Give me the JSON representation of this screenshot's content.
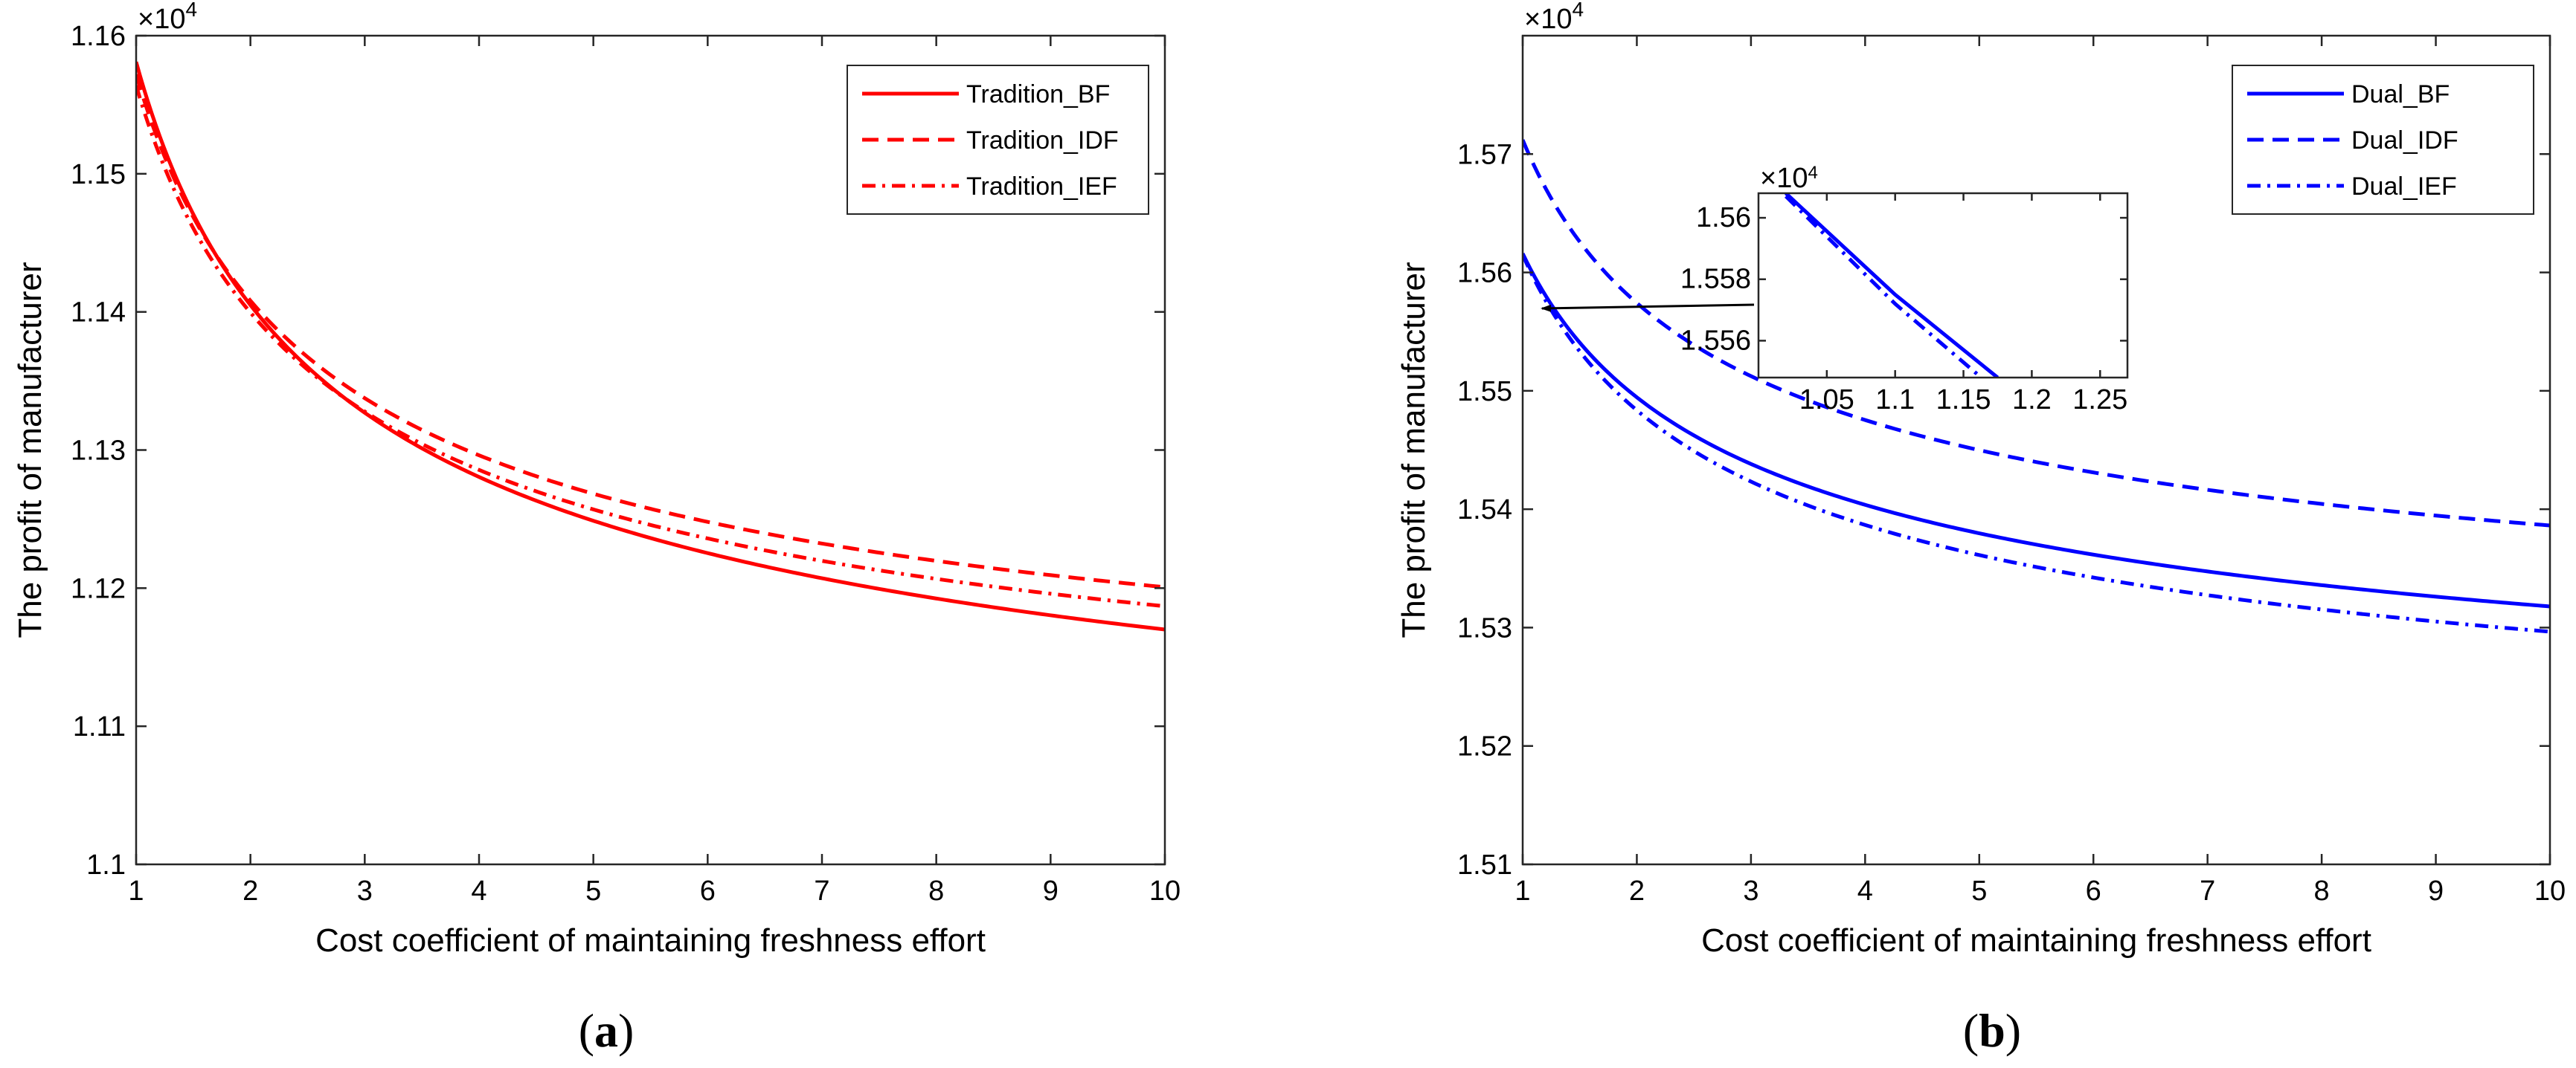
{
  "colors": {
    "red": "#ff0000",
    "blue": "#0000ff",
    "axis": "#262626"
  },
  "panels": [
    {
      "id": "a",
      "label_open": "(",
      "label_letter": "a",
      "label_close": ")",
      "exponent_label": "×10",
      "exponent_power": "4",
      "chart_data": {
        "type": "line",
        "xlabel": "Cost coefficient of maintaining freshness effort",
        "ylabel": "The profit of manufacturer",
        "xlim": [
          1,
          10
        ],
        "ylim": [
          1.1,
          1.16
        ],
        "xticks": [
          1,
          2,
          3,
          4,
          5,
          6,
          7,
          8,
          9,
          10
        ],
        "yticks": [
          1.1,
          1.11,
          1.12,
          1.13,
          1.14,
          1.15,
          1.16
        ],
        "xtick_labels": [
          "1",
          "2",
          "3",
          "4",
          "5",
          "6",
          "7",
          "8",
          "9",
          "10"
        ],
        "ytick_labels": [
          "1.1",
          "1.11",
          "1.12",
          "1.13",
          "1.14",
          "1.15",
          "1.16"
        ],
        "legend_position": "top-right",
        "series": [
          {
            "name": "Tradition_BF",
            "color": "#ff0000",
            "dash": "solid",
            "base": 1.098,
            "amp": 0.0601,
            "k": 0.5
          },
          {
            "name": "Tradition_IDF",
            "color": "#ff0000",
            "dash": "dashed",
            "base": 1.1055,
            "amp": 0.0517,
            "k": 0.55
          },
          {
            "name": "Tradition_IEF",
            "color": "#ff0000",
            "dash": "dashdot",
            "base": 1.1029,
            "amp": 0.0535,
            "k": 0.53
          }
        ]
      }
    },
    {
      "id": "b",
      "label_open": "(",
      "label_letter": "b",
      "label_close": ")",
      "exponent_label": "×10",
      "exponent_power": "4",
      "chart_data": {
        "type": "line",
        "xlabel": "Cost coefficient of maintaining freshness effort",
        "ylabel": "The profit of manufacturer",
        "xlim": [
          1,
          10
        ],
        "ylim": [
          1.51,
          1.58
        ],
        "xticks": [
          1,
          2,
          3,
          4,
          5,
          6,
          7,
          8,
          9,
          10
        ],
        "yticks": [
          1.51,
          1.52,
          1.53,
          1.54,
          1.55,
          1.56,
          1.57
        ],
        "xtick_labels": [
          "1",
          "2",
          "3",
          "4",
          "5",
          "6",
          "7",
          "8",
          "9",
          "10"
        ],
        "ytick_labels": [
          "1.51",
          "1.52",
          "1.53",
          "1.54",
          "1.55",
          "1.56",
          "1.57"
        ],
        "legend_position": "top-right",
        "series": [
          {
            "name": "Dual_BF",
            "color": "#0000ff",
            "dash": "solid",
            "base": 1.5135,
            "amp": 0.0481,
            "k": 0.42
          },
          {
            "name": "Dual_IDF",
            "color": "#0000ff",
            "dash": "dashed",
            "base": 1.5225,
            "amp": 0.0487,
            "k": 0.48
          },
          {
            "name": "Dual_IEF",
            "color": "#0000ff",
            "dash": "dashdot",
            "base": 1.5115,
            "amp": 0.05,
            "k": 0.44
          }
        ]
      },
      "inset": {
        "exponent_label": "×10",
        "exponent_power": "4",
        "xlim": [
          1.0,
          1.27
        ],
        "ylim": [
          1.5548,
          1.5608
        ],
        "xticks": [
          1.05,
          1.1,
          1.15,
          1.2,
          1.25
        ],
        "yticks": [
          1.556,
          1.558,
          1.56
        ],
        "xtick_labels": [
          "1.05",
          "1.1",
          "1.15",
          "1.2",
          "1.25"
        ],
        "ytick_labels": [
          "1.556",
          "1.558",
          "1.56"
        ],
        "series": [
          {
            "name": "Dual_BF",
            "dash": "solid",
            "points": [
              [
                1.02,
                1.5608
              ],
              [
                1.1,
                1.5575
              ],
              [
                1.175,
                1.5548
              ]
            ]
          },
          {
            "name": "Dual_IEF",
            "dash": "dashdot",
            "points": [
              [
                1.02,
                1.5607
              ],
              [
                1.1,
                1.5572
              ],
              [
                1.163,
                1.5548
              ]
            ]
          }
        ]
      }
    }
  ]
}
